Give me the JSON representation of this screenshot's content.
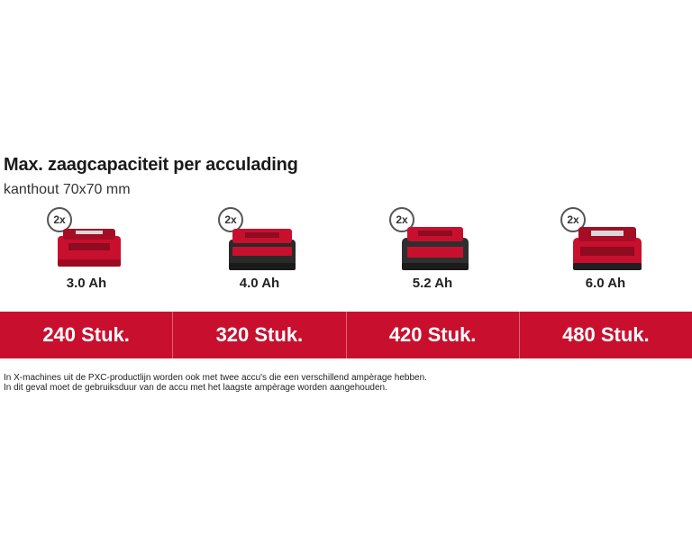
{
  "heading": {
    "title": "Max. zaagcapaciteit per acculading",
    "subtitle": "kanthout 70x70 mm"
  },
  "batteries": [
    {
      "quantity": "2x",
      "capacity": "3.0 Ah",
      "result": "240 Stuk.",
      "icon": "battery-pack-icon",
      "color": "#c8102e"
    },
    {
      "quantity": "2x",
      "capacity": "4.0 Ah",
      "result": "320 Stuk.",
      "icon": "battery-pack-icon",
      "color": "#c8102e"
    },
    {
      "quantity": "2x",
      "capacity": "5.2 Ah",
      "result": "420 Stuk.",
      "icon": "battery-pack-icon",
      "color": "#c8102e"
    },
    {
      "quantity": "2x",
      "capacity": "6.0 Ah",
      "result": "480 Stuk.",
      "icon": "battery-pack-icon",
      "color": "#c8102e"
    }
  ],
  "footnote": {
    "line1": "In X-machines uit de PXC-productlijn worden ook met twee accu's die een verschillend ampèrage hebben.",
    "line2": "In dit geval moet de gebruiksduur van de accu met het laagste ampèrage worden aangehouden."
  },
  "colors": {
    "brand_red": "#c8102e",
    "battery_dark": "#2a2a2a"
  }
}
